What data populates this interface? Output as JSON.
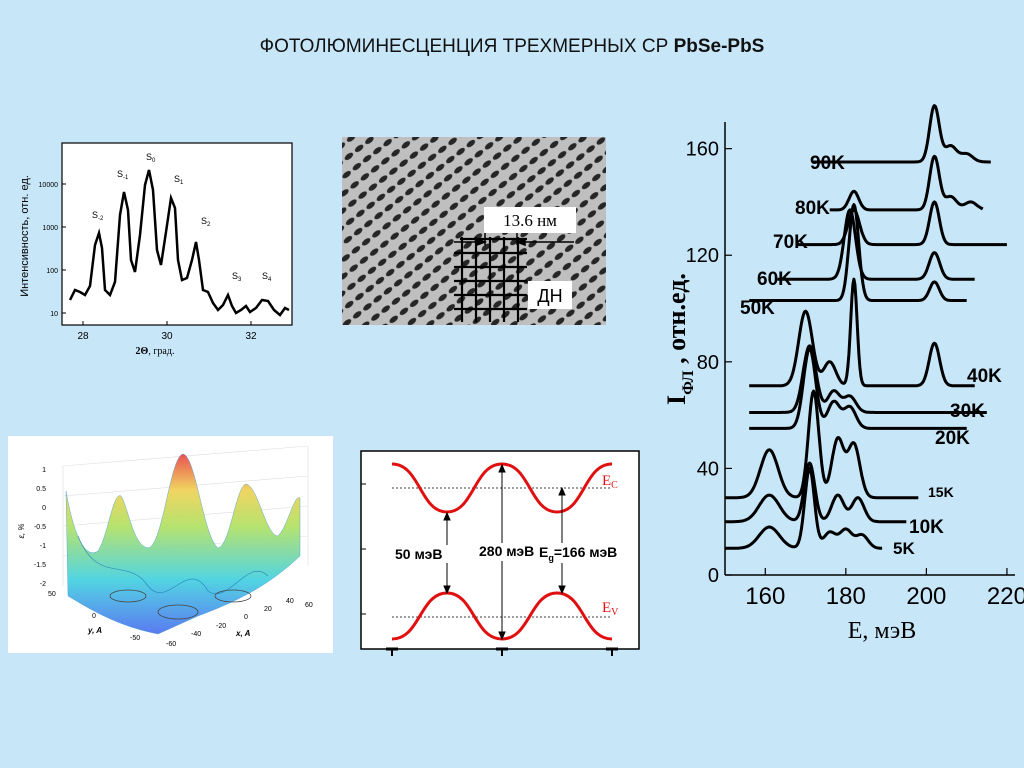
{
  "title": {
    "main": "ФОТОЛЮМИНЕСЦЕНЦИЯ ТРЕХМЕРНЫХ СР",
    "bold": "PbSe-PbS"
  },
  "xrd": {
    "ylabel": "Интенсивность, отн. ед.",
    "xlabel_symbol": "2Θ",
    "xlabel_unit": ", град.",
    "xticks": [
      "28",
      "30",
      "32"
    ],
    "yticks": [
      "10",
      "100",
      "1000",
      "10000"
    ],
    "peak_labels": [
      {
        "base": "S",
        "sub": "-2"
      },
      {
        "base": "S",
        "sub": "-1"
      },
      {
        "base": "S",
        "sub": "0"
      },
      {
        "base": "S",
        "sub": "1"
      },
      {
        "base": "S",
        "sub": "2"
      },
      {
        "base": "S",
        "sub": "3"
      },
      {
        "base": "S",
        "sub": "4"
      }
    ]
  },
  "tem": {
    "scale_label": "13.6 нм",
    "label": "ДН"
  },
  "surface": {
    "zlabel": "ε, %",
    "zticks": [
      "1",
      "0.5",
      "0",
      "-0.5",
      "-1",
      "-1.5",
      "-2"
    ],
    "ylabel": "y, A",
    "xlabel": "x, A",
    "yticks": [
      "50",
      "0",
      "-50"
    ],
    "xticks": [
      "-60",
      "-40",
      "-20",
      "0",
      "20",
      "40",
      "60"
    ]
  },
  "band": {
    "ec": {
      "base": "E",
      "sub": "C"
    },
    "ev": {
      "base": "E",
      "sub": "V"
    },
    "l50": "50 мэВ",
    "l280": "280 мэВ",
    "eg_base": "E",
    "eg_sub": "g",
    "eg_rest": "=166 мэВ"
  },
  "chart_data": {
    "type": "line",
    "xlabel": "E, мэВ",
    "ylabel_main": "I",
    "ylabel_sub": "ФЛ",
    "ylabel_rest": " , отн.ед.",
    "xlim": [
      150,
      222
    ],
    "ylim": [
      0,
      170
    ],
    "xticks": [
      160,
      180,
      200,
      220
    ],
    "yticks": [
      0,
      40,
      80,
      120,
      160
    ],
    "series": [
      {
        "name": "5K",
        "baseline": 10,
        "start": 150,
        "end": 189,
        "peaks": [
          [
            161,
            8,
            2.5
          ],
          [
            171,
            30,
            1.2
          ],
          [
            176,
            6,
            1.5
          ],
          [
            180,
            7,
            1.5
          ],
          [
            184,
            5,
            1.5
          ]
        ]
      },
      {
        "name": "10K",
        "baseline": 20,
        "start": 150,
        "end": 195,
        "peaks": [
          [
            161,
            10,
            2.5
          ],
          [
            171,
            22,
            1.3
          ],
          [
            178,
            10,
            1.5
          ],
          [
            183,
            9,
            1.5
          ]
        ]
      },
      {
        "name": "15K",
        "baseline": 29,
        "start": 150,
        "end": 198,
        "peaks": [
          [
            161,
            18,
            2.2
          ],
          [
            172,
            40,
            1.3
          ],
          [
            178,
            22,
            1.5
          ],
          [
            182,
            20,
            1.5
          ]
        ]
      },
      {
        "name": "20K",
        "baseline": 55,
        "start": 156,
        "end": 210,
        "peaks": [
          [
            171,
            30,
            1.5
          ],
          [
            177,
            10,
            1.5
          ],
          [
            181,
            8,
            1.5
          ]
        ]
      },
      {
        "name": "30K",
        "baseline": 61,
        "start": 156,
        "end": 215,
        "peaks": [
          [
            171,
            25,
            1.6
          ],
          [
            177,
            8,
            1.5
          ],
          [
            181,
            6,
            1.5
          ]
        ]
      },
      {
        "name": "40K",
        "baseline": 71,
        "start": 156,
        "end": 212,
        "peaks": [
          [
            170,
            28,
            1.7
          ],
          [
            176,
            9,
            1.5
          ],
          [
            182,
            40,
            0.8
          ],
          [
            202,
            16,
            1.3
          ]
        ]
      },
      {
        "name": "50K",
        "baseline": 103,
        "start": 156,
        "end": 210,
        "peaks": [
          [
            182,
            36,
            1.2
          ],
          [
            202,
            7,
            1.2
          ]
        ]
      },
      {
        "name": "60K",
        "baseline": 111,
        "start": 163,
        "end": 212,
        "peaks": [
          [
            181,
            26,
            1.4
          ],
          [
            202,
            10,
            1.3
          ]
        ]
      },
      {
        "name": "70K",
        "baseline": 124,
        "start": 168,
        "end": 220,
        "peaks": [
          [
            182,
            13,
            1.4
          ],
          [
            202,
            16,
            1.2
          ]
        ]
      },
      {
        "name": "80K",
        "baseline": 137,
        "start": 176,
        "end": 214,
        "peaks": [
          [
            182,
            7,
            1.2
          ],
          [
            202,
            20,
            1.2
          ],
          [
            206,
            5,
            1.5
          ],
          [
            211,
            3,
            1.5
          ]
        ]
      },
      {
        "name": "90K",
        "baseline": 155,
        "start": 172,
        "end": 216,
        "peaks": [
          [
            202,
            21,
            1.2
          ],
          [
            206,
            6,
            1.5
          ],
          [
            210,
            3,
            1.5
          ]
        ]
      }
    ]
  }
}
